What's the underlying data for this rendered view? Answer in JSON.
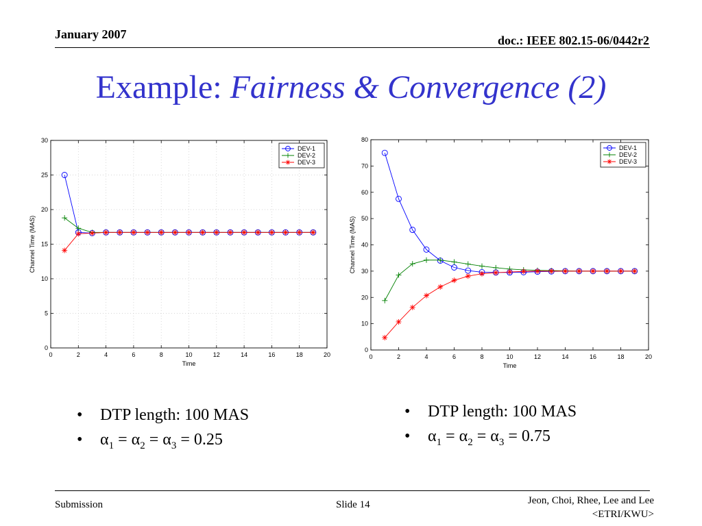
{
  "header": {
    "date": "January 2007",
    "doc": "doc.: IEEE 802.15-06/0442r2"
  },
  "title": {
    "plain": "Example: ",
    "italic": "Fairness & Convergence (2)"
  },
  "colors": {
    "title": "#3333cc",
    "dev1": "#0000ff",
    "dev2": "#008000",
    "dev3": "#ff0000"
  },
  "chart_data": [
    {
      "type": "line",
      "xlabel": "Time",
      "ylabel": "Channel Time (MAS)",
      "xlim": [
        0,
        20
      ],
      "ylim": [
        0,
        30
      ],
      "xticks": [
        "0",
        "2",
        "4",
        "6",
        "8",
        "10",
        "12",
        "14",
        "16",
        "18",
        "20"
      ],
      "yticks": [
        "0",
        "5",
        "10",
        "15",
        "20",
        "25",
        "30"
      ],
      "grid": true,
      "legend": "top-right",
      "x": [
        1,
        2,
        3,
        4,
        5,
        6,
        7,
        8,
        9,
        10,
        11,
        12,
        13,
        14,
        15,
        16,
        17,
        18,
        19
      ],
      "series": [
        {
          "name": "DEV-1",
          "marker": "circle",
          "color": "#0000ff",
          "values": [
            25,
            16.7,
            16.6,
            16.7,
            16.7,
            16.7,
            16.7,
            16.7,
            16.7,
            16.7,
            16.7,
            16.7,
            16.7,
            16.7,
            16.7,
            16.7,
            16.7,
            16.7,
            16.7
          ]
        },
        {
          "name": "DEV-2",
          "marker": "plus",
          "color": "#008000",
          "values": [
            18.8,
            17.3,
            16.7,
            16.7,
            16.7,
            16.7,
            16.7,
            16.7,
            16.7,
            16.7,
            16.7,
            16.7,
            16.7,
            16.7,
            16.7,
            16.7,
            16.7,
            16.7,
            16.7
          ]
        },
        {
          "name": "DEV-3",
          "marker": "star",
          "color": "#ff0000",
          "values": [
            14.1,
            16.5,
            16.6,
            16.7,
            16.7,
            16.7,
            16.7,
            16.7,
            16.7,
            16.7,
            16.7,
            16.7,
            16.7,
            16.7,
            16.7,
            16.7,
            16.7,
            16.7,
            16.7
          ]
        }
      ]
    },
    {
      "type": "line",
      "xlabel": "Time",
      "ylabel": "Channel Time (MAS)",
      "xlim": [
        0,
        20
      ],
      "ylim": [
        0,
        80
      ],
      "xticks": [
        "0",
        "2",
        "4",
        "6",
        "8",
        "10",
        "12",
        "14",
        "16",
        "18",
        "20"
      ],
      "yticks": [
        "0",
        "10",
        "20",
        "30",
        "40",
        "50",
        "60",
        "70",
        "80"
      ],
      "grid": false,
      "legend": "top-right",
      "x": [
        1,
        2,
        3,
        4,
        5,
        6,
        7,
        8,
        9,
        10,
        11,
        12,
        13,
        14,
        15,
        16,
        17,
        18,
        19
      ],
      "series": [
        {
          "name": "DEV-1",
          "marker": "circle",
          "color": "#0000ff",
          "values": [
            75,
            57.5,
            45.7,
            38.2,
            34,
            31.4,
            30.2,
            29.6,
            29.5,
            29.5,
            29.6,
            29.8,
            29.9,
            30,
            30,
            30,
            30,
            30,
            30
          ]
        },
        {
          "name": "DEV-2",
          "marker": "plus",
          "color": "#008000",
          "values": [
            18.8,
            28.5,
            32.8,
            34.2,
            34.2,
            33.5,
            32.7,
            31.9,
            31.3,
            30.8,
            30.5,
            30.3,
            30.2,
            30.1,
            30,
            30,
            30,
            30,
            30
          ]
        },
        {
          "name": "DEV-3",
          "marker": "star",
          "color": "#ff0000",
          "values": [
            4.7,
            10.7,
            16.2,
            20.7,
            24,
            26.5,
            28.1,
            29,
            29.4,
            29.7,
            29.9,
            30,
            30,
            30,
            30,
            30,
            30,
            30,
            30
          ]
        }
      ]
    }
  ],
  "bullets_left": {
    "items": [
      {
        "text": "DTP length: 100 MAS"
      },
      {
        "alpha": "α",
        "s1": "1",
        "s2": "2",
        "s3": "3",
        "eq": "=",
        "value": "0.25"
      }
    ]
  },
  "bullets_right": {
    "items": [
      {
        "text": "DTP length: 100 MAS"
      },
      {
        "alpha": "α",
        "s1": "1",
        "s2": "2",
        "s3": "3",
        "eq": "=",
        "value": "0.75"
      }
    ]
  },
  "bullet_glyph": "•",
  "footer": {
    "left": "Submission",
    "middle": "Slide 14",
    "right_line1": "Jeon, Choi, Rhee, Lee and Lee",
    "right_line2": "<ETRI/KWU>"
  }
}
